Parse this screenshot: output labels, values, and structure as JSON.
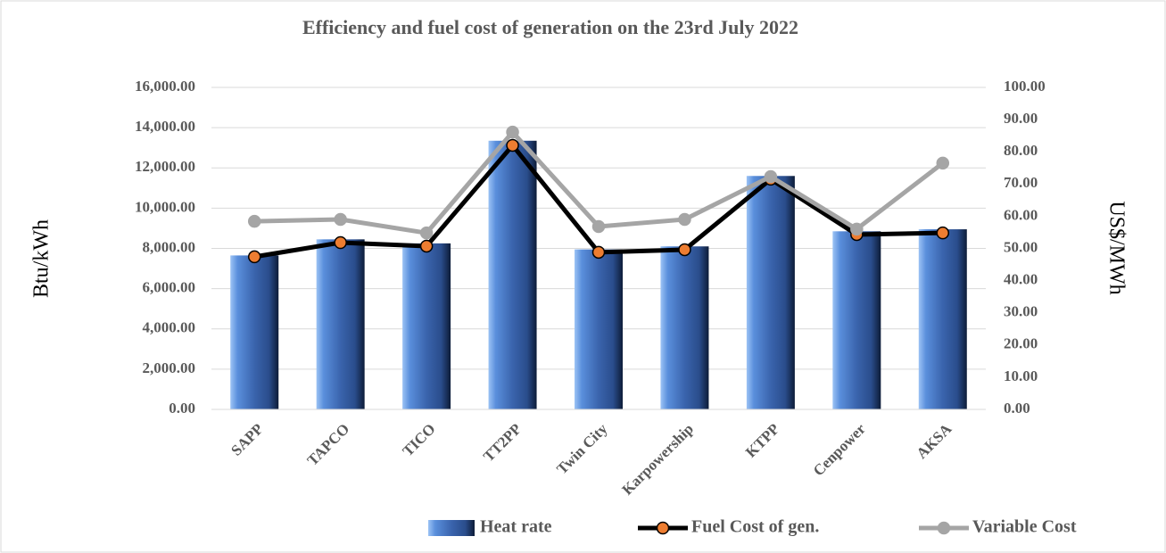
{
  "chart_data": {
    "type": "bar_line",
    "title": "Efficiency and fuel cost of generation on the 23rd July 2022",
    "y_label": "Btu/kWh",
    "y2_label": "US$/MWh",
    "categories": [
      "SAPP",
      "TAPCO",
      "TICO",
      "TT2PP",
      "Twin City",
      "Karpowership",
      "KTPP",
      "Cenpower",
      "AKSA"
    ],
    "series": [
      {
        "name": "Heat rate",
        "type": "bar",
        "color": "#3a64ad",
        "values": [
          7650,
          8450,
          8250,
          13350,
          7950,
          8100,
          11600,
          8850,
          8950
        ]
      },
      {
        "name": "Fuel Cost of gen.",
        "type": "line",
        "axis": "y2",
        "color": "#000000",
        "marker_color": "#ed7d31",
        "values": [
          47.4,
          51.8,
          50.7,
          82.0,
          48.8,
          49.6,
          71.5,
          54.3,
          54.8
        ]
      },
      {
        "name": "Variable Cost",
        "type": "line",
        "axis": "y2",
        "color": "#a5a5a5",
        "marker_color": "#a5a5a5",
        "values": [
          58.4,
          59.0,
          54.8,
          86.1,
          56.8,
          59.0,
          72.3,
          56.0,
          76.5
        ]
      }
    ],
    "ylim": [
      0,
      16000
    ],
    "yticks": [
      {
        "value": 0,
        "label": "0.00"
      },
      {
        "value": 2000,
        "label": "2,000.00"
      },
      {
        "value": 4000,
        "label": "4,000.00"
      },
      {
        "value": 6000,
        "label": "6,000.00"
      },
      {
        "value": 8000,
        "label": "8,000.00"
      },
      {
        "value": 10000,
        "label": "10,000.00"
      },
      {
        "value": 12000,
        "label": "12,000.00"
      },
      {
        "value": 14000,
        "label": "14,000.00"
      },
      {
        "value": 16000,
        "label": "16,000.00"
      }
    ],
    "y2lim": [
      0,
      100
    ],
    "y2ticks": [
      {
        "value": 0,
        "label": "0.00"
      },
      {
        "value": 10,
        "label": "10.00"
      },
      {
        "value": 20,
        "label": "20.00"
      },
      {
        "value": 30,
        "label": "30.00"
      },
      {
        "value": 40,
        "label": "40.00"
      },
      {
        "value": 50,
        "label": "50.00"
      },
      {
        "value": 60,
        "label": "60.00"
      },
      {
        "value": 70,
        "label": "70.00"
      },
      {
        "value": 80,
        "label": "80.00"
      },
      {
        "value": 90,
        "label": "90.00"
      },
      {
        "value": 100,
        "label": "100.00"
      }
    ],
    "grid": true,
    "legend": "bottom"
  }
}
